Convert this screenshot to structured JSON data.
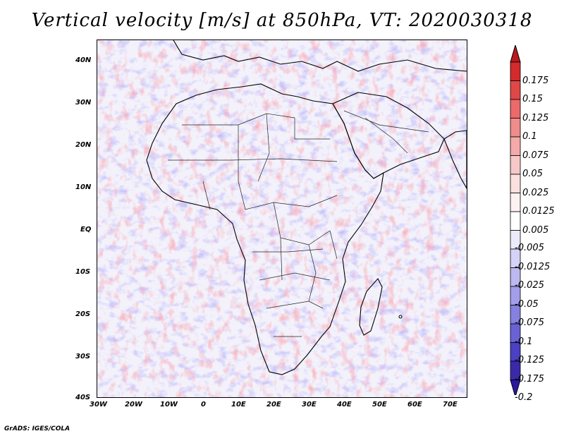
{
  "title": "Vertical velocity [m/s] at 850hPa, VT: 2020030318",
  "footer": "GrADS: IGES/COLA",
  "axes": {
    "y_ticks": [
      "40N",
      "30N",
      "20N",
      "10N",
      "EQ",
      "10S",
      "20S",
      "30S",
      "40S"
    ],
    "x_ticks": [
      "30W",
      "20W",
      "10W",
      "0",
      "10E",
      "20E",
      "30E",
      "40E",
      "50E",
      "60E",
      "70E"
    ]
  },
  "colorbar": {
    "labels": [
      "0.175",
      "0.15",
      "0.125",
      "0.1",
      "0.075",
      "0.05",
      "0.025",
      "0.0125",
      "0.005",
      "-0.005",
      "-0.0125",
      "-0.025",
      "-0.05",
      "-0.075",
      "-0.1",
      "-0.125",
      "-0.175",
      "-0.2"
    ],
    "colors": [
      "#b8181e",
      "#d42a2c",
      "#e04848",
      "#ec6a6a",
      "#f08c8c",
      "#f4aaaa",
      "#f8c8c8",
      "#fbe0e0",
      "#fdf1f1",
      "#ffffff",
      "#ecebfb",
      "#d4d2f6",
      "#bcb8f0",
      "#a29eea",
      "#8680e0",
      "#6a62d4",
      "#4c40c4",
      "#3a2aaa",
      "#2a18a0"
    ]
  },
  "chart_data": {
    "type": "heatmap",
    "title": "Vertical velocity [m/s] at 850hPa, VT: 2020030318",
    "variable": "Vertical velocity",
    "units": "m/s",
    "level": "850hPa",
    "valid_time": "2020030318",
    "lon_range": [
      -30,
      75
    ],
    "lat_range": [
      -40,
      45
    ],
    "colorbar_levels": [
      -0.2,
      -0.175,
      -0.125,
      -0.1,
      -0.075,
      -0.05,
      -0.025,
      -0.0125,
      -0.005,
      0.005,
      0.0125,
      0.025,
      0.05,
      0.075,
      0.1,
      0.125,
      0.15,
      0.175
    ]
  }
}
